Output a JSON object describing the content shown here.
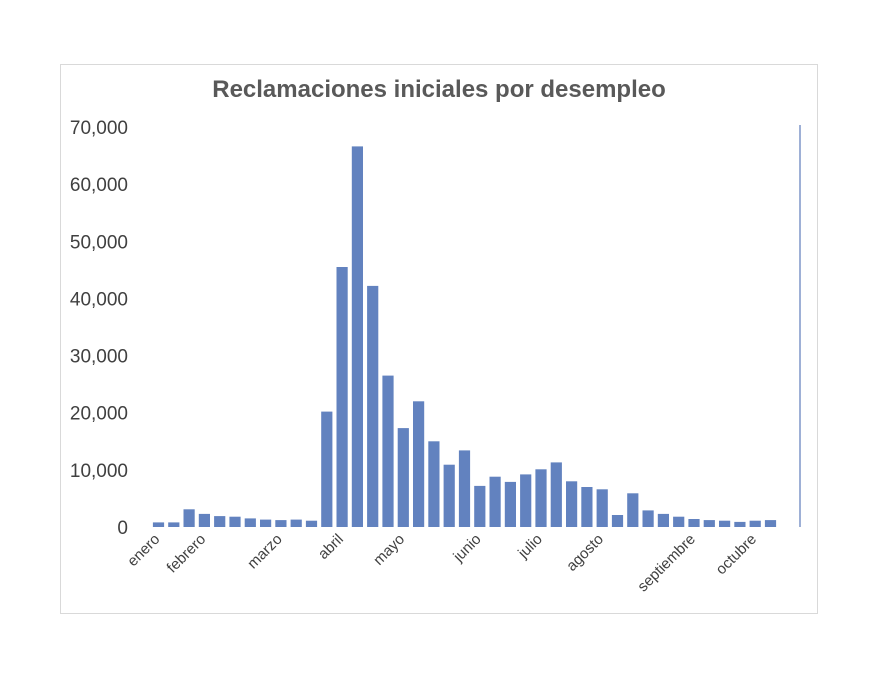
{
  "chart_data": {
    "type": "bar",
    "title": "Reclamaciones iniciales por desempleo",
    "xlabel": "",
    "ylabel": "",
    "ylim": [
      0,
      70000
    ],
    "yticks": [
      0,
      10000,
      20000,
      30000,
      40000,
      50000,
      60000,
      70000
    ],
    "ytick_labels": [
      "0",
      "10,000",
      "20,000",
      "30,000",
      "40,000",
      "50,000",
      "60,000",
      "70,000"
    ],
    "month_labels": [
      {
        "label": "enero",
        "index": 0
      },
      {
        "label": "febrero",
        "index": 3
      },
      {
        "label": "marzo",
        "index": 8
      },
      {
        "label": "abril",
        "index": 12
      },
      {
        "label": "mayo",
        "index": 16
      },
      {
        "label": "junio",
        "index": 21
      },
      {
        "label": "julio",
        "index": 25
      },
      {
        "label": "agosto",
        "index": 29
      },
      {
        "label": "septiembre",
        "index": 35
      },
      {
        "label": "octubre",
        "index": 39
      }
    ],
    "values": [
      800,
      800,
      3100,
      2300,
      1900,
      1800,
      1500,
      1300,
      1200,
      1300,
      1100,
      20200,
      45500,
      66600,
      42200,
      26500,
      17300,
      22000,
      15000,
      10900,
      13400,
      7200,
      8800,
      7900,
      9200,
      10100,
      11300,
      8000,
      7000,
      6600,
      2100,
      5900,
      2900,
      2300,
      1800,
      1400,
      1200,
      1100,
      900,
      1100,
      1200
    ],
    "grid": false,
    "legend": "none",
    "bar_color": "#6282bf"
  }
}
